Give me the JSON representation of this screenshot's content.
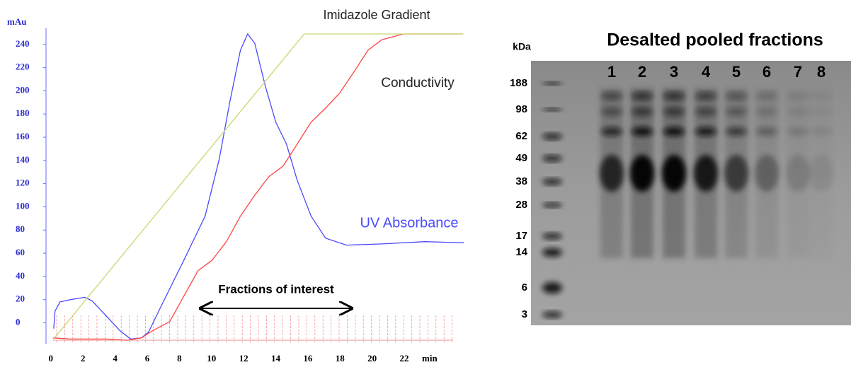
{
  "chart_data": {
    "type": "line",
    "y_axis_label": "mAu",
    "x_axis_label": "min",
    "xlim": [
      -0.3,
      26
    ],
    "ylim": [
      -18,
      260
    ],
    "xticks": [
      0,
      2,
      4,
      6,
      8,
      10,
      12,
      14,
      16,
      18,
      20,
      22
    ],
    "yticks": [
      0,
      20,
      40,
      60,
      80,
      100,
      120,
      140,
      160,
      180,
      200,
      220,
      240
    ],
    "annotation": "Fractions of interest",
    "series": [
      {
        "name": "UV Absorbance",
        "color": "#4a4aff",
        "x": [
          0.18,
          0.26,
          0.57,
          1.23,
          2.11,
          2.56,
          3.44,
          4.32,
          4.98,
          5.64,
          6.08,
          6.96,
          8.28,
          9.6,
          10.48,
          11.15,
          11.8,
          12.25,
          12.69,
          13.35,
          14.0,
          14.67,
          15.33,
          16.2,
          17.1,
          18.4,
          20.6,
          23.3,
          25.7
        ],
        "values": [
          -5,
          10,
          18,
          20,
          22,
          19,
          6,
          -7,
          -14,
          -13,
          -8,
          17,
          54,
          92,
          141,
          191,
          235,
          249,
          241,
          204,
          173,
          154,
          123,
          92,
          73,
          67,
          68,
          70,
          69
        ]
      },
      {
        "name": "Conductivity",
        "color": "#ff4444",
        "x": [
          0.13,
          1.23,
          3.44,
          4.76,
          5.64,
          6.3,
          7.4,
          8.28,
          9.16,
          10.04,
          10.93,
          11.8,
          12.69,
          13.57,
          14.45,
          15.33,
          16.2,
          17.1,
          17.97,
          18.85,
          19.74,
          20.6,
          21.94,
          25.68
        ],
        "values": [
          -13,
          -14,
          -14,
          -15,
          -13,
          -7,
          1,
          23,
          45,
          54,
          70,
          92,
          110,
          126,
          135,
          154,
          173,
          185,
          198,
          216,
          235,
          244,
          249,
          249
        ]
      },
      {
        "name": "Imidazole Gradient",
        "color": "#c8d870",
        "x": [
          0.22,
          15.77,
          25.68
        ],
        "values": [
          -13,
          249,
          249
        ]
      }
    ]
  },
  "gel": {
    "title": "Desalted pooled fractions",
    "unit": "kDa",
    "markers": [
      188,
      98,
      62,
      49,
      38,
      28,
      17,
      14,
      6,
      3
    ],
    "lanes": [
      "1",
      "2",
      "3",
      "4",
      "5",
      "6",
      "7",
      "8"
    ]
  }
}
